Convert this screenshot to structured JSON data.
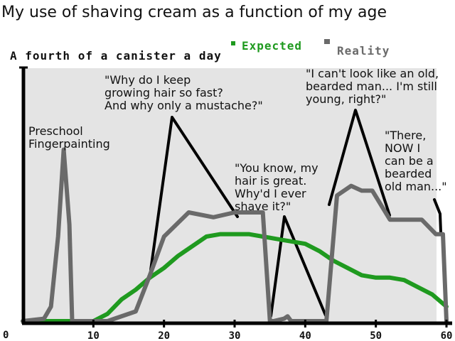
{
  "chart_data": {
    "type": "line",
    "title": "My use of shaving cream as a function of my age",
    "ylabel": "A fourth of a canister a day",
    "y_origin_label": "0",
    "xlim": [
      0,
      60
    ],
    "ylim": [
      0,
      1
    ],
    "xticks": [
      10,
      20,
      30,
      40,
      50,
      60
    ],
    "legend_placement": "top-right",
    "grid": false,
    "colors": {
      "plot_bg": "#e4e4e4",
      "expected": "#1f9a1f",
      "reality": "#6a6a6a",
      "axis": "#000000"
    },
    "series": [
      {
        "name": "Expected",
        "color": "#1f9a1f",
        "x": [
          0,
          10,
          12,
          14,
          16,
          18,
          20,
          22,
          24,
          26,
          28,
          30,
          32,
          34,
          36,
          38,
          40,
          42,
          44,
          46,
          48,
          50,
          52,
          54,
          56,
          58,
          60
        ],
        "y": [
          0.0,
          0.0,
          0.03,
          0.09,
          0.13,
          0.18,
          0.22,
          0.27,
          0.31,
          0.35,
          0.36,
          0.36,
          0.36,
          0.35,
          0.34,
          0.33,
          0.32,
          0.29,
          0.25,
          0.22,
          0.19,
          0.18,
          0.18,
          0.17,
          0.14,
          0.11,
          0.06
        ]
      },
      {
        "name": "Reality",
        "color": "#6a6a6a",
        "x": [
          0,
          3,
          4,
          5,
          5.8,
          6.6,
          7,
          12,
          16,
          18,
          20,
          23.5,
          27,
          30,
          34,
          35,
          35.5,
          37,
          37.5,
          38,
          43,
          44.5,
          46.5,
          48,
          49.5,
          52,
          56.5,
          58.5,
          59.5,
          60
        ],
        "y": [
          0.0,
          0.01,
          0.06,
          0.35,
          0.71,
          0.4,
          0.0,
          0.0,
          0.04,
          0.19,
          0.35,
          0.45,
          0.43,
          0.45,
          0.45,
          0.0,
          0.0,
          0.01,
          0.02,
          0.0,
          0.0,
          0.52,
          0.56,
          0.54,
          0.54,
          0.42,
          0.42,
          0.36,
          0.36,
          0.0
        ]
      }
    ],
    "annotations": [
      {
        "lines": [
          "Preschool",
          "Fingerpainting"
        ],
        "x": 6,
        "y": 0.75
      },
      {
        "lines": [
          "\"Why do I keep",
          "growing hair so fast?",
          "And why only a mustache?\""
        ],
        "x": 21,
        "y": 0.87
      },
      {
        "lines": [
          "\"You know, my",
          "hair is great.",
          "Why'd I ever",
          "shave it?\""
        ],
        "x": 37,
        "y": 0.55
      },
      {
        "lines": [
          "\"I can't look like an old,",
          "bearded man... I'm still",
          "young, right?\""
        ],
        "x": 47,
        "y": 1.0
      },
      {
        "lines": [
          "\"There,",
          "NOW I",
          "can be a",
          "bearded",
          "old man...\""
        ],
        "x": 58,
        "y": 0.8
      }
    ]
  }
}
